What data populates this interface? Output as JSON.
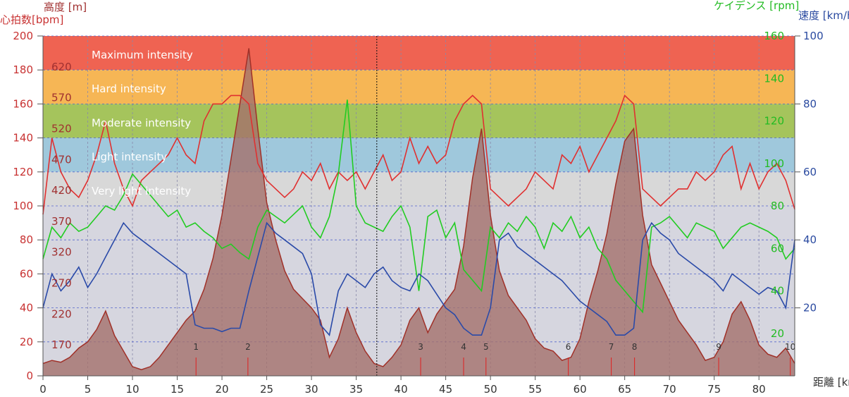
{
  "chart_data": {
    "type": "line",
    "title": "",
    "axes": {
      "heart_rate": {
        "title": "心拍数[bpm]",
        "min": 0,
        "max": 200,
        "ticks": [
          0,
          20,
          40,
          60,
          80,
          100,
          120,
          140,
          160,
          180,
          200
        ],
        "color": "#c83232"
      },
      "altitude": {
        "title": "高度 [m]",
        "min": 120,
        "max": 670,
        "ticks": [
          170,
          220,
          270,
          320,
          370,
          420,
          470,
          520,
          570,
          620
        ],
        "color": "#a03030"
      },
      "cadence": {
        "title": "ケイデンス [rpm]",
        "min": 0,
        "max": 160,
        "ticks": [
          20,
          40,
          60,
          80,
          100,
          120,
          140,
          160
        ],
        "color": "#22bb22"
      },
      "speed": {
        "title": "速度 [km/h]",
        "min": 0,
        "max": 100,
        "ticks": [
          20,
          40,
          60,
          80,
          100
        ],
        "color": "#2a4aa0"
      },
      "distance": {
        "title": "距離 [km]",
        "min": 0,
        "max": 84,
        "ticks": [
          0,
          5,
          10,
          15,
          20,
          25,
          30,
          35,
          40,
          45,
          50,
          55,
          60,
          65,
          70,
          75,
          80
        ],
        "color": "#333333"
      }
    },
    "zones": [
      {
        "label": "Maximum intensity",
        "from": 180,
        "to": 200,
        "color": "#ef6352"
      },
      {
        "label": "Hard intensity",
        "from": 160,
        "to": 180,
        "color": "#f6b655"
      },
      {
        "label": "Moderate intensity",
        "from": 140,
        "to": 160,
        "color": "#a5c45c"
      },
      {
        "label": "Light intensity",
        "from": 120,
        "to": 140,
        "color": "#9fc8dc"
      },
      {
        "label": "Very light intensity",
        "from": 100,
        "to": 120,
        "color": "#d8d8d8"
      }
    ],
    "series": [
      {
        "name": "心拍数",
        "axis": "heart_rate",
        "color": "#e03030",
        "x": [
          0,
          1,
          2,
          3,
          4,
          5,
          6,
          7,
          8,
          9,
          10,
          11,
          12,
          13,
          14,
          15,
          16,
          17,
          18,
          19,
          20,
          21,
          22,
          23,
          24,
          25,
          26,
          27,
          28,
          29,
          30,
          31,
          32,
          33,
          34,
          35,
          36,
          37,
          38,
          39,
          40,
          41,
          42,
          43,
          44,
          45,
          46,
          47,
          48,
          49,
          50,
          51,
          52,
          53,
          54,
          55,
          56,
          57,
          58,
          59,
          60,
          61,
          62,
          63,
          64,
          65,
          66,
          67,
          68,
          69,
          70,
          71,
          72,
          73,
          74,
          75,
          76,
          77,
          78,
          79,
          80,
          81,
          82,
          83,
          84
        ],
        "y": [
          95,
          140,
          120,
          110,
          105,
          115,
          130,
          150,
          125,
          110,
          100,
          115,
          120,
          125,
          130,
          140,
          130,
          125,
          150,
          160,
          160,
          165,
          165,
          160,
          125,
          115,
          110,
          105,
          110,
          120,
          115,
          125,
          110,
          120,
          115,
          120,
          110,
          120,
          130,
          115,
          120,
          140,
          125,
          135,
          125,
          130,
          150,
          160,
          165,
          160,
          110,
          105,
          100,
          105,
          110,
          120,
          115,
          110,
          130,
          125,
          135,
          120,
          130,
          140,
          150,
          165,
          160,
          110,
          105,
          100,
          105,
          110,
          110,
          120,
          115,
          120,
          130,
          135,
          110,
          125,
          110,
          120,
          125,
          115,
          98
        ]
      },
      {
        "name": "ケイデンス",
        "axis": "cadence",
        "color": "#22cc22",
        "x": [
          0,
          1,
          2,
          3,
          4,
          5,
          6,
          7,
          8,
          9,
          10,
          11,
          12,
          13,
          14,
          15,
          16,
          17,
          18,
          19,
          20,
          21,
          22,
          23,
          24,
          25,
          26,
          27,
          28,
          29,
          30,
          31,
          32,
          33,
          34,
          35,
          36,
          37,
          38,
          39,
          40,
          41,
          42,
          43,
          44,
          45,
          46,
          47,
          48,
          49,
          50,
          51,
          52,
          53,
          54,
          55,
          56,
          57,
          58,
          59,
          60,
          61,
          62,
          63,
          64,
          65,
          66,
          67,
          68,
          69,
          70,
          71,
          72,
          73,
          74,
          75,
          76,
          77,
          78,
          79,
          80,
          81,
          82,
          83,
          84
        ],
        "y": [
          55,
          70,
          65,
          72,
          68,
          70,
          75,
          80,
          78,
          85,
          95,
          90,
          85,
          80,
          75,
          78,
          70,
          72,
          68,
          65,
          60,
          62,
          58,
          55,
          70,
          78,
          75,
          72,
          76,
          80,
          70,
          65,
          75,
          95,
          130,
          80,
          72,
          70,
          68,
          75,
          80,
          70,
          40,
          75,
          78,
          65,
          72,
          50,
          45,
          40,
          70,
          65,
          72,
          68,
          75,
          70,
          60,
          72,
          68,
          75,
          65,
          70,
          60,
          55,
          45,
          40,
          35,
          30,
          70,
          72,
          75,
          70,
          65,
          72,
          70,
          68,
          60,
          65,
          70,
          72,
          70,
          68,
          65,
          55,
          60
        ]
      },
      {
        "name": "速度",
        "axis": "speed",
        "color": "#2a4aa8",
        "x": [
          0,
          1,
          2,
          3,
          4,
          5,
          6,
          7,
          8,
          9,
          10,
          11,
          12,
          13,
          14,
          15,
          16,
          17,
          18,
          19,
          20,
          21,
          22,
          23,
          24,
          25,
          26,
          27,
          28,
          29,
          30,
          31,
          32,
          33,
          34,
          35,
          36,
          37,
          38,
          39,
          40,
          41,
          42,
          43,
          44,
          45,
          46,
          47,
          48,
          49,
          50,
          51,
          52,
          53,
          54,
          55,
          56,
          57,
          58,
          59,
          60,
          61,
          62,
          63,
          64,
          65,
          66,
          67,
          68,
          69,
          70,
          71,
          72,
          73,
          74,
          75,
          76,
          77,
          78,
          79,
          80,
          81,
          82,
          83,
          84
        ],
        "y": [
          20,
          30,
          25,
          28,
          32,
          26,
          30,
          35,
          40,
          45,
          42,
          40,
          38,
          36,
          34,
          32,
          30,
          15,
          14,
          14,
          13,
          14,
          14,
          25,
          35,
          45,
          42,
          40,
          38,
          36,
          30,
          15,
          12,
          25,
          30,
          28,
          26,
          30,
          32,
          28,
          26,
          25,
          30,
          28,
          24,
          20,
          18,
          14,
          12,
          12,
          20,
          40,
          42,
          38,
          36,
          34,
          32,
          30,
          28,
          25,
          22,
          20,
          18,
          16,
          12,
          12,
          14,
          40,
          45,
          42,
          40,
          36,
          34,
          32,
          30,
          28,
          25,
          30,
          28,
          26,
          24,
          26,
          25,
          20,
          40
        ]
      },
      {
        "name": "高度",
        "axis": "altitude",
        "color": "#a03028",
        "fill": "#a4706c",
        "x": [
          0,
          1,
          2,
          3,
          4,
          5,
          6,
          7,
          8,
          9,
          10,
          11,
          12,
          13,
          14,
          15,
          16,
          17,
          18,
          19,
          20,
          21,
          22,
          23,
          24,
          25,
          26,
          27,
          28,
          29,
          30,
          31,
          32,
          33,
          34,
          35,
          36,
          37,
          38,
          39,
          40,
          41,
          42,
          43,
          44,
          45,
          46,
          47,
          48,
          49,
          50,
          51,
          52,
          53,
          54,
          55,
          56,
          57,
          58,
          59,
          60,
          61,
          62,
          63,
          64,
          65,
          66,
          67,
          68,
          69,
          70,
          71,
          72,
          73,
          74,
          75,
          76,
          77,
          78,
          79,
          80,
          81,
          82,
          83,
          84
        ],
        "y": [
          140,
          145,
          142,
          150,
          165,
          175,
          195,
          225,
          185,
          160,
          135,
          130,
          135,
          150,
          170,
          190,
          210,
          225,
          260,
          310,
          380,
          470,
          560,
          650,
          520,
          400,
          340,
          290,
          260,
          245,
          230,
          210,
          150,
          180,
          230,
          190,
          160,
          140,
          135,
          150,
          170,
          210,
          230,
          190,
          220,
          240,
          260,
          330,
          440,
          520,
          380,
          290,
          250,
          230,
          210,
          180,
          165,
          160,
          145,
          150,
          180,
          240,
          290,
          350,
          430,
          500,
          520,
          380,
          300,
          270,
          240,
          210,
          190,
          170,
          145,
          150,
          175,
          220,
          240,
          210,
          170,
          155,
          150,
          165,
          140
        ]
      }
    ],
    "markers": [
      {
        "label": "1",
        "x": 17.1
      },
      {
        "label": "2",
        "x": 22.9
      },
      {
        "label": "3",
        "x": 42.2
      },
      {
        "label": "4",
        "x": 47.0
      },
      {
        "label": "5",
        "x": 49.5
      },
      {
        "label": "6",
        "x": 58.7
      },
      {
        "label": "7",
        "x": 63.5
      },
      {
        "label": "8",
        "x": 66.1
      },
      {
        "label": "9",
        "x": 75.5
      },
      {
        "label": "10",
        "x": 83.5
      }
    ],
    "cursor_x": 37.3,
    "grid": true
  }
}
